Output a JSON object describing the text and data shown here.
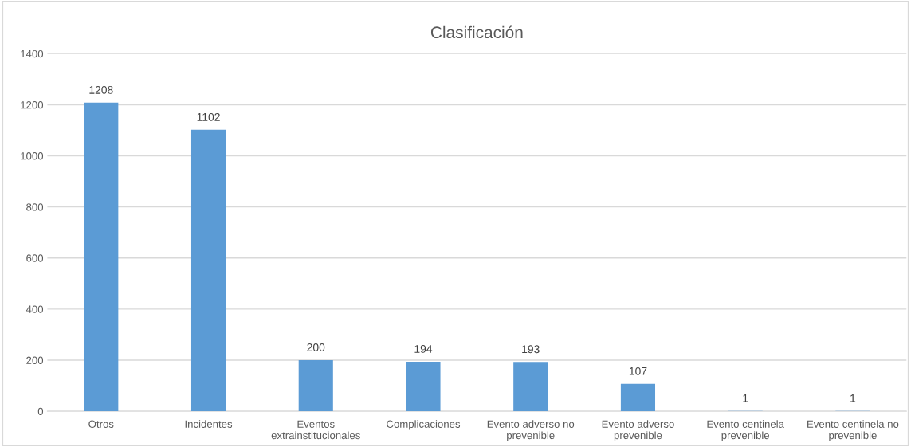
{
  "chart_data": {
    "type": "bar",
    "title": "Clasificación",
    "categories": [
      "Otros",
      "Incidentes",
      "Eventos extrainstitucionales",
      "Complicaciones",
      "Evento adverso no prevenible",
      "Evento adverso prevenible",
      "Evento centinela prevenible",
      "Evento centinela no prevenible"
    ],
    "values": [
      1208,
      1102,
      200,
      194,
      193,
      107,
      1,
      1
    ],
    "color": "#5b9bd5",
    "ylim": [
      0,
      1400
    ],
    "yticks": [
      0,
      200,
      400,
      600,
      800,
      1000,
      1200,
      1400
    ],
    "grid": "y",
    "data_labels": true
  }
}
